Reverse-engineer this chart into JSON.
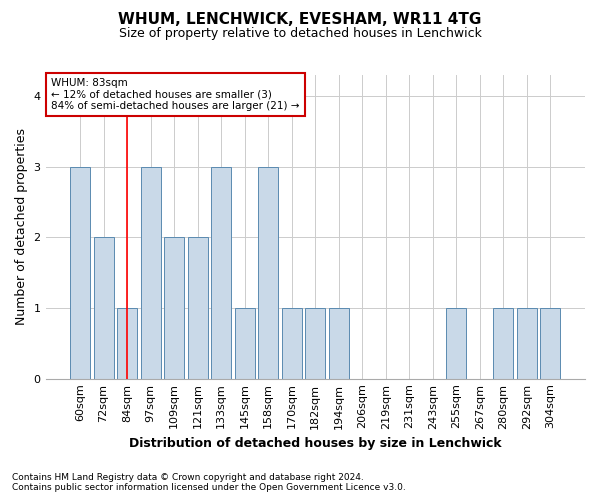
{
  "title": "WHUM, LENCHWICK, EVESHAM, WR11 4TG",
  "subtitle": "Size of property relative to detached houses in Lenchwick",
  "xlabel": "Distribution of detached houses by size in Lenchwick",
  "ylabel": "Number of detached properties",
  "categories": [
    "60sqm",
    "72sqm",
    "84sqm",
    "97sqm",
    "109sqm",
    "121sqm",
    "133sqm",
    "145sqm",
    "158sqm",
    "170sqm",
    "182sqm",
    "194sqm",
    "206sqm",
    "219sqm",
    "231sqm",
    "243sqm",
    "255sqm",
    "267sqm",
    "280sqm",
    "292sqm",
    "304sqm"
  ],
  "values": [
    3,
    2,
    1,
    3,
    2,
    2,
    3,
    1,
    3,
    1,
    1,
    1,
    0,
    0,
    0,
    0,
    1,
    0,
    1,
    1,
    1
  ],
  "bar_color": "#c9d9e8",
  "bar_edge_color": "#5a8ab0",
  "red_line_index": 2,
  "annotation_text": "WHUM: 83sqm\n← 12% of detached houses are smaller (3)\n84% of semi-detached houses are larger (21) →",
  "annotation_box_color": "#ffffff",
  "annotation_box_edge_color": "#cc0000",
  "ylim": [
    0,
    4.3
  ],
  "yticks": [
    0,
    1,
    2,
    3,
    4
  ],
  "footer1": "Contains HM Land Registry data © Crown copyright and database right 2024.",
  "footer2": "Contains public sector information licensed under the Open Government Licence v3.0.",
  "background_color": "#ffffff",
  "grid_color": "#cccccc",
  "title_fontsize": 11,
  "subtitle_fontsize": 9,
  "xlabel_fontsize": 9,
  "ylabel_fontsize": 9,
  "tick_fontsize": 8,
  "footer_fontsize": 6.5
}
